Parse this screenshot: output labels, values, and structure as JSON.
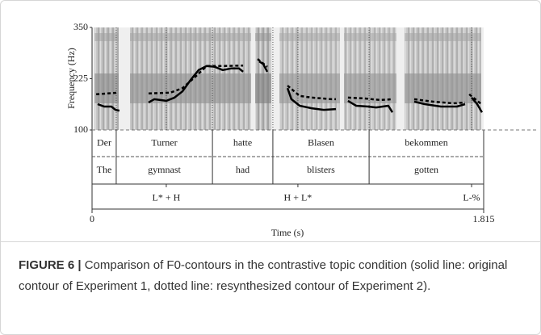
{
  "chart_data": {
    "type": "line",
    "y_label": "Frequency (Hz)",
    "x_label": "Time (s)",
    "xlim": [
      0,
      1.815
    ],
    "xticks": [
      0,
      1.815
    ],
    "ylim": [
      100,
      350
    ],
    "yticks": [
      100,
      225,
      350
    ],
    "series": [
      {
        "color": "#000000",
        "dash": "solid",
        "x": [
          0.026,
          0.056,
          0.09,
          0.109,
          0.127,
          null,
          0.262,
          0.288,
          0.344,
          0.382,
          0.419,
          0.457,
          0.494,
          0.531,
          0.569,
          0.606,
          0.644,
          0.681,
          0.7,
          null,
          0.775,
          0.793,
          0.812,
          null,
          0.906,
          0.924,
          0.962,
          1.018,
          1.074,
          1.13,
          null,
          1.186,
          1.224,
          1.28,
          1.317,
          1.373,
          1.392,
          null,
          1.493,
          1.542,
          1.617,
          1.691,
          1.729,
          null,
          1.759,
          1.785,
          1.807
        ],
        "values": [
          163,
          157,
          157,
          149,
          147,
          null,
          167,
          175,
          171,
          179,
          194,
          222,
          246,
          256,
          254,
          246,
          250,
          250,
          242,
          null,
          267,
          261,
          242,
          null,
          202,
          175,
          159,
          153,
          149,
          151,
          null,
          171,
          159,
          157,
          155,
          159,
          143,
          null,
          169,
          163,
          157,
          157,
          163,
          null,
          179,
          163,
          143
        ]
      },
      {
        "color": "#000000",
        "dash": "dotted",
        "x": [
          0.019,
          0.12,
          null,
          0.262,
          0.363,
          0.419,
          0.475,
          0.531,
          0.606,
          0.7,
          null,
          0.767,
          0.812,
          null,
          0.906,
          0.962,
          1.018,
          1.111,
          1.13,
          null,
          1.186,
          1.261,
          1.336,
          1.392,
          null,
          1.493,
          1.579,
          1.673,
          1.729,
          null,
          1.748,
          1.804
        ],
        "values": [
          187,
          191,
          null,
          189,
          191,
          202,
          228,
          256,
          256,
          257,
          null,
          273,
          254,
          null,
          208,
          183,
          179,
          175,
          175,
          null,
          179,
          177,
          173,
          175,
          null,
          175,
          169,
          165,
          167,
          null,
          187,
          163
        ]
      }
    ],
    "tiers": [
      {
        "intervals": [
          {
            "text": "Der",
            "start": 0,
            "end": 0.112
          },
          {
            "text": "Turner",
            "start": 0.112,
            "end": 0.558
          },
          {
            "text": "hatte",
            "start": 0.558,
            "end": 0.838
          },
          {
            "text": "Blasen",
            "start": 0.838,
            "end": 1.284
          },
          {
            "text": "bekommen",
            "start": 1.284,
            "end": 1.815
          }
        ]
      },
      {
        "intervals": [
          {
            "text": "The",
            "start": 0,
            "end": 0.112
          },
          {
            "text": "gymnast",
            "start": 0.112,
            "end": 0.558
          },
          {
            "text": "had",
            "start": 0.558,
            "end": 0.838
          },
          {
            "text": "blisters",
            "start": 0.838,
            "end": 1.284
          },
          {
            "text": "gotten",
            "start": 1.284,
            "end": 1.815
          }
        ]
      },
      {
        "points": [
          {
            "text": "L* + H",
            "time": 0.344
          },
          {
            "text": "H + L*",
            "time": 0.954
          },
          {
            "text": "L-%",
            "time": 1.759
          }
        ]
      }
    ]
  },
  "caption": {
    "label": "FIGURE 6 |",
    "text": "Comparison of F0-contours in the contrastive topic condition (solid line: original contour of Experiment 1, dotted line: resynthesized contour of Experiment 2)."
  }
}
